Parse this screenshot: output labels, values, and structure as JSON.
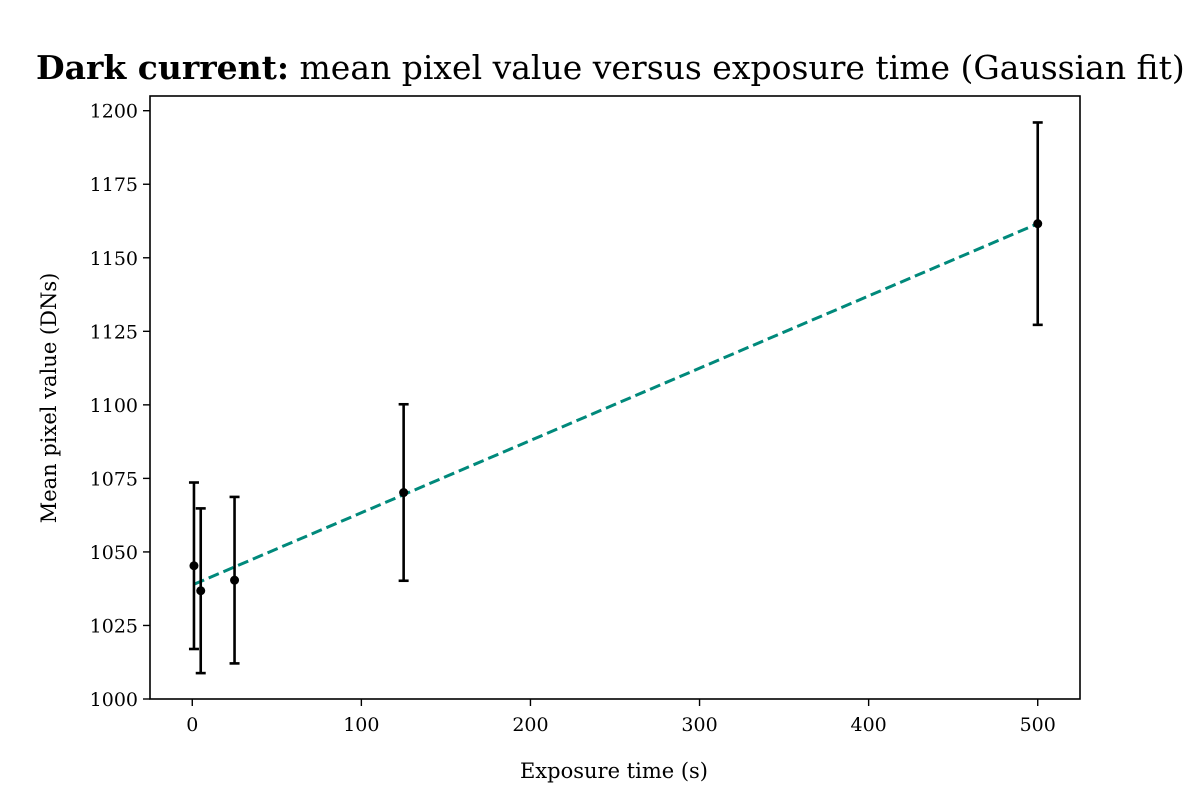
{
  "chart_data": {
    "type": "scatter",
    "title_bold": "Dark current:",
    "title_rest": " mean pixel value versus exposure time (Gaussian fit)",
    "xlabel": "Exposure time (s)",
    "ylabel": "Mean pixel value (DNs)",
    "xlim": [
      -25,
      525
    ],
    "ylim": [
      1000,
      1205
    ],
    "xticks": [
      0,
      100,
      200,
      300,
      400,
      500
    ],
    "yticks": [
      1000,
      1025,
      1050,
      1075,
      1100,
      1125,
      1150,
      1175,
      1200
    ],
    "grid": false,
    "points": [
      {
        "x": 1,
        "y": 1045.3,
        "err": 28.3
      },
      {
        "x": 5,
        "y": 1036.8,
        "err": 28.0
      },
      {
        "x": 25,
        "y": 1040.4,
        "err": 28.3
      },
      {
        "x": 125,
        "y": 1070.2,
        "err": 30.0
      },
      {
        "x": 500,
        "y": 1161.6,
        "err": 34.4
      }
    ],
    "fit_line": {
      "x": [
        1,
        500
      ],
      "y": [
        1039.0,
        1161.6
      ]
    },
    "colors": {
      "points": "#000000",
      "errorbars": "#000000",
      "fit": "#00897b"
    }
  }
}
